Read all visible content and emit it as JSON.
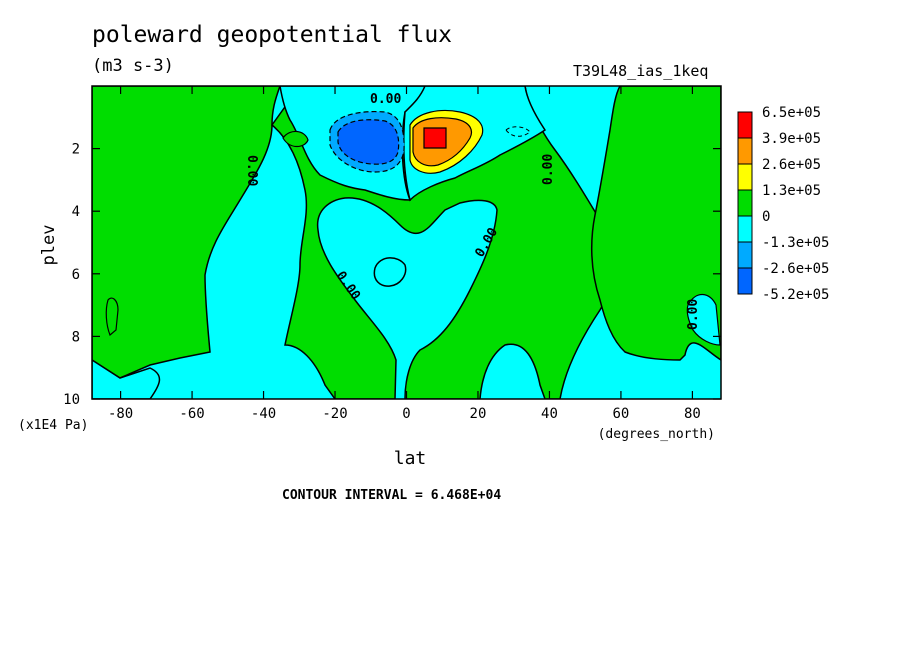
{
  "header": {
    "title": "poleward geopotential flux",
    "units": "(m3 s-3)",
    "run_name": "T39L48_ias_1keq",
    "contour_interval": "CONTOUR INTERVAL = 6.468E+04"
  },
  "chart_data": {
    "type": "contour",
    "title": "poleward geopotential flux",
    "units": "(m3 s-3)",
    "xlabel": "lat",
    "xunits": "(degrees_north)",
    "ylabel": "plev",
    "yunits": "(x1E4 Pa)",
    "xlim": [
      -88,
      88
    ],
    "ylim": [
      10,
      0
    ],
    "x_ticks": [
      -80,
      -60,
      -40,
      -20,
      0,
      20,
      40,
      60,
      80
    ],
    "y_ticks": [
      2,
      4,
      6,
      8,
      10
    ],
    "contour_labels": [
      "0.00",
      "0.00",
      "0.00",
      "0.00",
      "0.00",
      "0.00",
      "0.00"
    ],
    "colorbar": {
      "labels": [
        "6.5e+05",
        "3.9e+05",
        "2.6e+05",
        "1.3e+05",
        "0",
        "-1.3e+05",
        "-2.6e+05",
        "-5.2e+05"
      ],
      "colors": [
        "#ff0000",
        "#ff9900",
        "#ffff00",
        "#00dd00",
        "#00ffff",
        "#00aaff",
        "#0066ff"
      ]
    },
    "features": [
      {
        "kind": "negative-core",
        "lat": -10,
        "plev": 1.8,
        "level": "-5.2e+05 to -2.6e+05"
      },
      {
        "kind": "positive-core",
        "lat": 8,
        "plev": 1.8,
        "level": "6.5e+05"
      }
    ]
  }
}
